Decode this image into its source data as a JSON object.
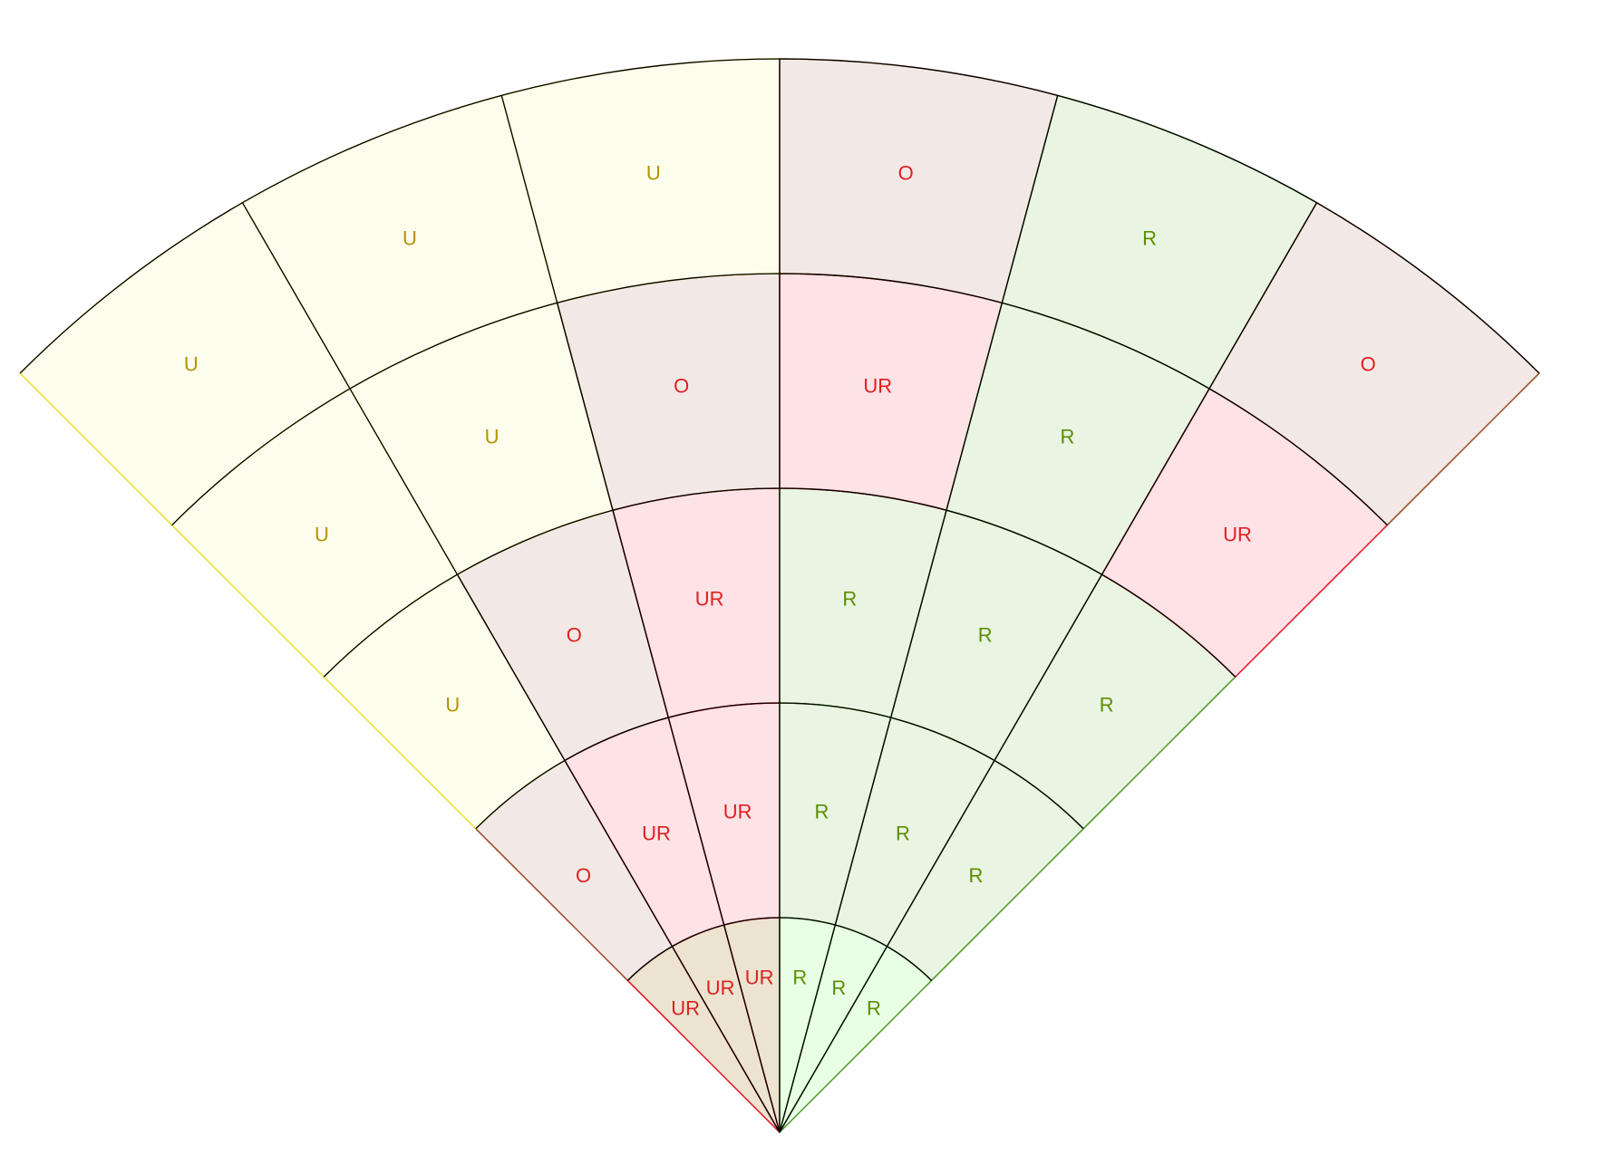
{
  "diagram": {
    "legend_codes": [
      "U",
      "O",
      "UR",
      "R"
    ],
    "colors": {
      "U": {
        "fill": "#fdfdee",
        "stroke": "#e6e030",
        "text": "#b59400"
      },
      "O": {
        "fill": "#f2e9e6",
        "stroke": "#9c4a1e",
        "text": "#e02020"
      },
      "UR": {
        "fill": "#fde2e6",
        "stroke": "#e01020",
        "text": "#e02020"
      },
      "R": {
        "fill": "#e9f4e3",
        "stroke": "#4a9a1e",
        "text": "#5b8f00"
      }
    },
    "rings": [
      {
        "ring": "inner",
        "sectors": [
          {
            "label": "UR",
            "code": "UR",
            "fill": "#ece3d0"
          },
          {
            "label": "UR",
            "code": "UR",
            "fill": "#ece3d0"
          },
          {
            "label": "UR",
            "code": "UR",
            "fill": "#ece3d0"
          },
          {
            "label": "R",
            "code": "R",
            "fill": "#e8ffe6"
          },
          {
            "label": "R",
            "code": "R",
            "fill": "#e8ffe6"
          },
          {
            "label": "R",
            "code": "R",
            "fill": "#e8ffe6"
          }
        ]
      },
      {
        "ring": "second",
        "sectors": [
          {
            "label": "O",
            "code": "O"
          },
          {
            "label": "UR",
            "code": "UR"
          },
          {
            "label": "UR",
            "code": "UR"
          },
          {
            "label": "R",
            "code": "R"
          },
          {
            "label": "R",
            "code": "R"
          },
          {
            "label": "R",
            "code": "R"
          }
        ]
      },
      {
        "ring": "third",
        "sectors": [
          {
            "label": "U",
            "code": "U"
          },
          {
            "label": "O",
            "code": "O"
          },
          {
            "label": "UR",
            "code": "UR"
          },
          {
            "label": "R",
            "code": "R"
          },
          {
            "label": "R",
            "code": "R"
          },
          {
            "label": "R",
            "code": "R"
          }
        ]
      },
      {
        "ring": "fourth",
        "sectors": [
          {
            "label": "U",
            "code": "U"
          },
          {
            "label": "U",
            "code": "U"
          },
          {
            "label": "O",
            "code": "O"
          },
          {
            "label": "UR",
            "code": "UR"
          },
          {
            "label": "R",
            "code": "R"
          },
          {
            "label": "UR",
            "code": "UR"
          }
        ]
      },
      {
        "ring": "outer",
        "sectors": [
          {
            "label": "U",
            "code": "U"
          },
          {
            "label": "U",
            "code": "U"
          },
          {
            "label": "U",
            "code": "U"
          },
          {
            "label": "O",
            "code": "O"
          },
          {
            "label": "R",
            "code": "R"
          },
          {
            "label": "O",
            "code": "O"
          }
        ]
      }
    ]
  }
}
